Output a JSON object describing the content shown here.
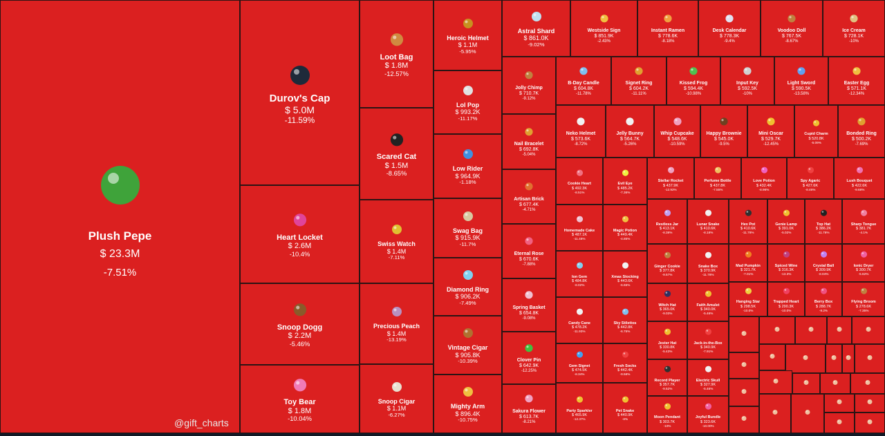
{
  "chart_data": {
    "type": "treemap",
    "color_negative": "#db2020",
    "currency": "$",
    "items": [
      {
        "name": "Plush Pepe",
        "price": "23.3M",
        "change": "-7.51%",
        "icon": "frog-plush-icon",
        "c": "#3fa33a"
      },
      {
        "name": "Durov's Cap",
        "price": "5.0M",
        "change": "-11.59%",
        "icon": "cap-icon",
        "c": "#1e2a3a"
      },
      {
        "name": "Heart Locket",
        "price": "2.6M",
        "change": "-10.4%",
        "icon": "locket-icon",
        "c": "#e0449a"
      },
      {
        "name": "Snoop Dogg",
        "price": "2.2M",
        "change": "-5.46%",
        "icon": "dog-icon",
        "c": "#8a5a2a"
      },
      {
        "name": "Toy Bear",
        "price": "1.8M",
        "change": "-10.04%",
        "icon": "bear-icon",
        "c": "#f07ab5"
      },
      {
        "name": "Loot Bag",
        "price": "1.8M",
        "change": "-12.57%",
        "icon": "bag-icon",
        "c": "#d08a40"
      },
      {
        "name": "Scared Cat",
        "price": "1.5M",
        "change": "-8.65%",
        "icon": "cat-icon",
        "c": "#222"
      },
      {
        "name": "Swiss Watch",
        "price": "1.4M",
        "change": "-7.11%",
        "icon": "watch-icon",
        "c": "#e0c030"
      },
      {
        "name": "Precious Peach",
        "price": "1.4M",
        "change": "-13.19%",
        "icon": "peach-icon",
        "c": "#b890c0"
      },
      {
        "name": "Snoop Cigar",
        "price": "1.1M",
        "change": "-6.27%",
        "icon": "cigar-icon",
        "c": "#e8e0d0"
      },
      {
        "name": "Heroic Helmet",
        "price": "1.1M",
        "change": "-5.95%",
        "icon": "helmet-icon",
        "c": "#c89020"
      },
      {
        "name": "Lol Pop",
        "price": "993.2K",
        "change": "-11.17%",
        "icon": "lollipop-icon",
        "c": "#e0e0e0"
      },
      {
        "name": "Low Rider",
        "price": "964.9K",
        "change": "-1.18%",
        "icon": "car-icon",
        "c": "#4090e0"
      },
      {
        "name": "Swag Bag",
        "price": "915.9K",
        "change": "-11.7%",
        "icon": "bag-icon",
        "c": "#d8c8a0"
      },
      {
        "name": "Diamond Ring",
        "price": "906.2K",
        "change": "-7.49%",
        "icon": "ring-icon",
        "c": "#80d0f0"
      },
      {
        "name": "Vintage Cigar",
        "price": "905.8K",
        "change": "-10.39%",
        "icon": "cigar-icon",
        "c": "#b07030"
      },
      {
        "name": "Mighty Arm",
        "price": "896.4K",
        "change": "-10.75%",
        "icon": "arm-icon",
        "c": "#f0c040"
      },
      {
        "name": "Astral Shard",
        "price": "861.0K",
        "change": "-9.02%",
        "icon": "crystal-icon",
        "c": "#c0e0f0"
      },
      {
        "name": "Westside Sign",
        "price": "851.9K",
        "change": "-2.43%",
        "icon": "hand-icon",
        "c": "#f0c040"
      },
      {
        "name": "Instant Ramen",
        "price": "778.6K",
        "change": "-8.18%",
        "icon": "ramen-icon",
        "c": "#f0a040"
      },
      {
        "name": "Desk Calendar",
        "price": "778.3K",
        "change": "-9.4%",
        "icon": "calendar-icon",
        "c": "#e0e0f0"
      },
      {
        "name": "Voodoo Doll",
        "price": "767.5K",
        "change": "-8.67%",
        "icon": "doll-icon",
        "c": "#c08040"
      },
      {
        "name": "Ice Cream",
        "price": "728.1K",
        "change": "-10%",
        "icon": "icecream-icon",
        "c": "#e0c080"
      },
      {
        "name": "Jolly Chimp",
        "price": "710.7K",
        "change": "-9.12%",
        "icon": "monkey-icon",
        "c": "#c08040"
      },
      {
        "name": "B-Day Candle",
        "price": "604.8K",
        "change": "-11.78%",
        "icon": "candle-icon",
        "c": "#80c0f0"
      },
      {
        "name": "Signet Ring",
        "price": "604.2K",
        "change": "-11.11%",
        "icon": "ring-icon",
        "c": "#e0a030"
      },
      {
        "name": "Kissed Frog",
        "price": "594.4K",
        "change": "-10.98%",
        "icon": "frog-icon",
        "c": "#50c050"
      },
      {
        "name": "Input Key",
        "price": "592.5K",
        "change": "-10%",
        "icon": "key-icon",
        "c": "#d0d0d0"
      },
      {
        "name": "Light Sword",
        "price": "590.5K",
        "change": "-13.58%",
        "icon": "sword-icon",
        "c": "#60a0f0"
      },
      {
        "name": "Easter Egg",
        "price": "571.1K",
        "change": "-12.34%",
        "icon": "egg-icon",
        "c": "#f0c040"
      },
      {
        "name": "Nail Bracelet",
        "price": "692.8K",
        "change": "-5.04%",
        "icon": "bracelet-icon",
        "c": "#e0a030"
      },
      {
        "name": "Neko Helmet",
        "price": "573.6K",
        "change": "-8.72%",
        "icon": "helmet-icon",
        "c": "#f0f0f0"
      },
      {
        "name": "Jelly Bunny",
        "price": "564.7K",
        "change": "-5.26%",
        "icon": "bunny-icon",
        "c": "#f0f0f0"
      },
      {
        "name": "Whip Cupcake",
        "price": "548.6K",
        "change": "-10.59%",
        "icon": "cupcake-icon",
        "c": "#f0a0c0"
      },
      {
        "name": "Happy Brownie",
        "price": "545.0K",
        "change": "-9.5%",
        "icon": "brownie-icon",
        "c": "#704020"
      },
      {
        "name": "Mini Oscar",
        "price": "529.7K",
        "change": "-12.45%",
        "icon": "trophy-icon",
        "c": "#f0c030"
      },
      {
        "name": "Cupid Charm",
        "price": "520.8K",
        "change": "-5.09%",
        "icon": "heart-icon",
        "c": "#f0c030"
      },
      {
        "name": "Bonded Ring",
        "price": "500.2K",
        "change": "-7.69%",
        "icon": "ring-icon",
        "c": "#e0a030"
      },
      {
        "name": "Artisan Brick",
        "price": "677.4K",
        "change": "-4.71%",
        "icon": "brick-icon",
        "c": "#e07030"
      },
      {
        "name": "Cookie Heart",
        "price": "492.3K",
        "change": "-8.51%",
        "icon": "cookie-icon",
        "c": "#f07080"
      },
      {
        "name": "Evil Eye",
        "price": "485.2K",
        "change": "-7.36%",
        "icon": "eye-icon",
        "c": "#f0f040"
      },
      {
        "name": "Stellar Rocket",
        "price": "437.9K",
        "change": "-12.92%",
        "icon": "rocket-icon",
        "c": "#f0a0c0"
      },
      {
        "name": "Perfume Bottle",
        "price": "437.8K",
        "change": "-7.55%",
        "icon": "perfume-icon",
        "c": "#f0c060"
      },
      {
        "name": "Love Potion",
        "price": "432.4K",
        "change": "-8.96%",
        "icon": "potion-icon",
        "c": "#f060c0"
      },
      {
        "name": "Spy Agaric",
        "price": "427.6K",
        "change": "-8.46%",
        "icon": "mushroom-icon",
        "c": "#f04040"
      },
      {
        "name": "Lush Bouquet",
        "price": "422.6K",
        "change": "-9.68%",
        "icon": "bouquet-icon",
        "c": "#f070b0"
      },
      {
        "name": "Eternal Rose",
        "price": "670.6K",
        "change": "-7.88%",
        "icon": "rose-icon",
        "c": "#f06080"
      },
      {
        "name": "Homemade Cake",
        "price": "487.1K",
        "change": "-11.48%",
        "icon": "cake-icon",
        "c": "#f0c0d0"
      },
      {
        "name": "Magic Potion",
        "price": "449.4K",
        "change": "-4.85%",
        "icon": "potion-icon",
        "c": "#f0c040"
      },
      {
        "name": "Restless Jar",
        "price": "413.1K",
        "change": "-8.38%",
        "icon": "jar-icon",
        "c": "#c0a0f0"
      },
      {
        "name": "Lunar Snake",
        "price": "410.6K",
        "change": "-8.18%",
        "icon": "snake-icon",
        "c": "#f0f0f0"
      },
      {
        "name": "Hex Pot",
        "price": "410.6K",
        "change": "-11.78%",
        "icon": "pot-icon",
        "c": "#303030"
      },
      {
        "name": "Genie Lamp",
        "price": "391.0K",
        "change": "-5.02%",
        "icon": "lamp-icon",
        "c": "#f0c030"
      },
      {
        "name": "Top Hat",
        "price": "386.2K",
        "change": "-11.78%",
        "icon": "hat-icon",
        "c": "#222"
      },
      {
        "name": "Sharp Tongue",
        "price": "381.7K",
        "change": "-4.1%",
        "icon": "tongue-icon",
        "c": "#f080a0"
      },
      {
        "name": "Ion Gem",
        "price": "484.8K",
        "change": "-8.02%",
        "icon": "gem-icon",
        "c": "#80d0f0"
      },
      {
        "name": "Xmas Stocking",
        "price": "443.6K",
        "change": "-6.65%",
        "icon": "stocking-icon",
        "c": "#f0f0f0"
      },
      {
        "name": "Ginger Cookie",
        "price": "377.8K",
        "change": "-9.57%",
        "icon": "cookie-icon",
        "c": "#c08040"
      },
      {
        "name": "Snake Box",
        "price": "370.9K",
        "change": "-11.78%",
        "icon": "box-icon",
        "c": "#f0f0f0"
      },
      {
        "name": "Mad Pumpkin",
        "price": "321.7K",
        "change": "-7.01%",
        "icon": "pumpkin-icon",
        "c": "#f08020"
      },
      {
        "name": "Spiced Wine",
        "price": "316.3K",
        "change": "-13.3%",
        "icon": "wine-icon",
        "c": "#c04080"
      },
      {
        "name": "Crystal Ball",
        "price": "309.9K",
        "change": "-8.04%",
        "icon": "ball-icon",
        "c": "#c080f0"
      },
      {
        "name": "Ionic Dryer",
        "price": "300.7K",
        "change": "-5.62%",
        "icon": "dryer-icon",
        "c": "#f060a0"
      },
      {
        "name": "Spring Basket",
        "price": "654.8K",
        "change": "-9.08%",
        "icon": "basket-icon",
        "c": "#f0c0d0"
      },
      {
        "name": "Candy Cane",
        "price": "478.2K",
        "change": "-11.93%",
        "icon": "cane-icon",
        "c": "#f0f0f0"
      },
      {
        "name": "Sky Stilettos",
        "price": "442.8K",
        "change": "-6.75%",
        "icon": "shoe-icon",
        "c": "#80c0f0"
      },
      {
        "name": "Witch Hat",
        "price": "365.0K",
        "change": "-9.03%",
        "icon": "hat-icon",
        "c": "#303060"
      },
      {
        "name": "Faith Amulet",
        "price": "340.0K",
        "change": "-5.46%",
        "icon": "amulet-icon",
        "c": "#f0c030"
      },
      {
        "name": "Hanging Star",
        "price": "298.5K",
        "change": "-10.0%",
        "icon": "star-icon",
        "c": "#f0d040"
      },
      {
        "name": "Trapped Heart",
        "price": "290.3K",
        "change": "-10.0%",
        "icon": "heart-icon",
        "c": "#f04060"
      },
      {
        "name": "Berry Box",
        "price": "288.7K",
        "change": "-9.2%",
        "icon": "box-icon",
        "c": "#f05080"
      },
      {
        "name": "Flying Broom",
        "price": "278.6K",
        "change": "-7.35%",
        "icon": "broom-icon",
        "c": "#c08040"
      },
      {
        "name": "Clover Pin",
        "price": "642.9K",
        "change": "-12.25%",
        "icon": "clover-icon",
        "c": "#40c040"
      },
      {
        "name": "Gem Signet",
        "price": "474.5K",
        "change": "-8.34%",
        "icon": "ring-icon",
        "c": "#40a0f0"
      },
      {
        "name": "Fresh Socks",
        "price": "442.4K",
        "change": "-9.58%",
        "icon": "socks-icon",
        "c": "#f04040"
      },
      {
        "name": "Jester Hat",
        "price": "330.8K",
        "change": "-5.43%",
        "icon": "hat-icon",
        "c": "#f0c030"
      },
      {
        "name": "Jack-in-the-Box",
        "price": "340.9K",
        "change": "-7.91%",
        "icon": "box-icon",
        "c": "#f04040"
      },
      {
        "name": "Record Player",
        "price": "357.7K",
        "change": "-9.52%",
        "icon": "record-icon",
        "c": "#303030"
      },
      {
        "name": "Electric Skull",
        "price": "327.9K",
        "change": "-5.46%",
        "icon": "skull-icon",
        "c": "#f0f0f0"
      },
      {
        "name": "Mighty Arm",
        "price": "896.4K",
        "change": "-10.75%",
        "icon": "arm-icon",
        "c": "#f0c040"
      },
      {
        "name": "Sakura Flower",
        "price": "613.7K",
        "change": "-8.21%",
        "icon": "flower-icon",
        "c": "#f0a0c0"
      },
      {
        "name": "Party Sparkler",
        "price": "465.9K",
        "change": "-12.37%",
        "icon": "sparkler-icon",
        "c": "#f0c030"
      },
      {
        "name": "Pet Snake",
        "price": "440.9K",
        "change": "-8%",
        "icon": "snake-icon",
        "c": "#f0c030"
      },
      {
        "name": "Moon Pendant",
        "price": "303.7K",
        "change": "-10%",
        "icon": "moon-icon",
        "c": "#f0c030"
      },
      {
        "name": "Joyful Bundle",
        "price": "323.6K",
        "change": "-10.00%",
        "icon": "gift-icon",
        "c": "#f060a0"
      }
    ]
  },
  "watermark": "@gift_charts"
}
